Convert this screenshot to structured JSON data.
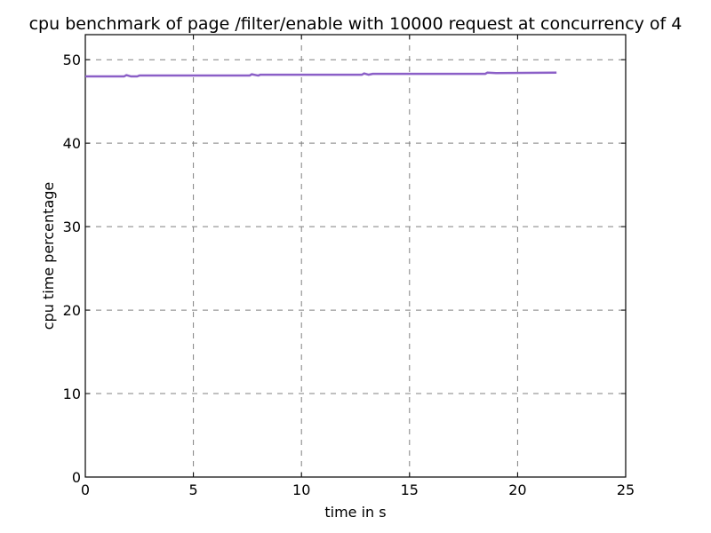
{
  "chart_data": {
    "type": "line",
    "title": "cpu benchmark of page /filter/enable with 10000 request at concurrency of 4",
    "xlabel": "time in s",
    "ylabel": "cpu time percentage",
    "xlim": [
      0,
      25
    ],
    "ylim": [
      0,
      53
    ],
    "xticks": [
      0,
      5,
      10,
      15,
      20,
      25
    ],
    "yticks": [
      0,
      10,
      20,
      30,
      40,
      50
    ],
    "grid": true,
    "series_color": "#8B5FC7",
    "series": [
      {
        "x": [
          0.0,
          1.8,
          1.9,
          2.1,
          2.4,
          2.5,
          7.6,
          7.7,
          8.0,
          8.1,
          12.8,
          12.9,
          13.1,
          13.3,
          18.5,
          18.6,
          19.0,
          21.8
        ],
        "y": [
          48.0,
          48.0,
          48.15,
          48.0,
          48.0,
          48.1,
          48.1,
          48.25,
          48.1,
          48.2,
          48.2,
          48.35,
          48.2,
          48.3,
          48.3,
          48.45,
          48.4,
          48.45
        ]
      }
    ]
  }
}
